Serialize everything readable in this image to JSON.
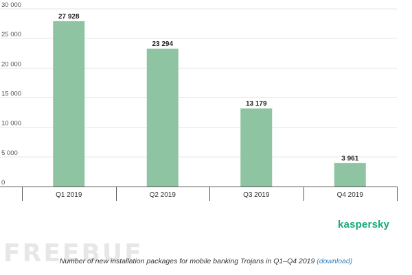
{
  "chart_data": {
    "type": "bar",
    "categories": [
      "Q1 2019",
      "Q2 2019",
      "Q3 2019",
      "Q4 2019"
    ],
    "values": [
      27928,
      23294,
      13179,
      3961
    ],
    "value_labels": [
      "27 928",
      "23 294",
      "13 179",
      "3 961"
    ],
    "yticks": [
      0,
      5000,
      10000,
      15000,
      20000,
      25000,
      30000
    ],
    "ytick_labels": [
      "0",
      "5 000",
      "10 000",
      "15 000",
      "20 000",
      "25 000",
      "30 000"
    ],
    "ylim": [
      0,
      30000
    ],
    "grid": true,
    "legend": "none",
    "title": "",
    "xlabel": "",
    "ylabel": "",
    "colors": {
      "bar": "#8fc4a2",
      "grid": "#e6e6e6",
      "axis": "#555555"
    }
  },
  "caption": {
    "text": "Number of new installation packages for mobile banking Trojans in Q1–Q4 2019",
    "link_label": "(download)"
  },
  "brand": {
    "name": "kaspersky",
    "color": "#1aa87a"
  },
  "watermark": {
    "text": "FREEBUF"
  }
}
